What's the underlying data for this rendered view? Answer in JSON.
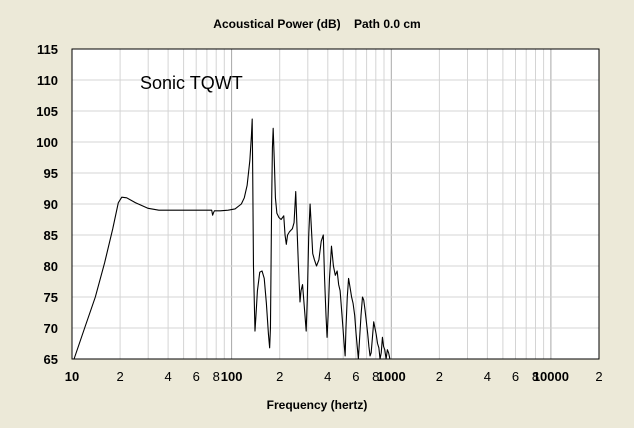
{
  "chart_data": {
    "type": "line",
    "title": "Acoustical Power (dB)    Path 0.0 cm",
    "xlabel": "Frequency (hertz)",
    "ylabel": "",
    "x_scale": "log",
    "xlim": [
      10,
      20000
    ],
    "ylim": [
      65,
      115
    ],
    "grid": true,
    "y_ticks": [
      65,
      70,
      75,
      80,
      85,
      90,
      95,
      100,
      105,
      110,
      115
    ],
    "x_ticks": [
      {
        "value": 10,
        "label": "10"
      },
      {
        "value": 20,
        "label": "2"
      },
      {
        "value": 40,
        "label": "4"
      },
      {
        "value": 60,
        "label": "6"
      },
      {
        "value": 80,
        "label": "8"
      },
      {
        "value": 100,
        "label": "100"
      },
      {
        "value": 200,
        "label": "2"
      },
      {
        "value": 400,
        "label": "4"
      },
      {
        "value": 600,
        "label": "6"
      },
      {
        "value": 800,
        "label": "8"
      },
      {
        "value": 1000,
        "label": "1000"
      },
      {
        "value": 2000,
        "label": "2"
      },
      {
        "value": 4000,
        "label": "4"
      },
      {
        "value": 6000,
        "label": "6"
      },
      {
        "value": 8000,
        "label": "8"
      },
      {
        "value": 10000,
        "label": "10000"
      },
      {
        "value": 20000,
        "label": "2"
      }
    ],
    "annotation": "Sonic TQWT",
    "series": [
      {
        "color": "#000000",
        "points": [
          [
            10.3,
            65
          ],
          [
            12,
            70
          ],
          [
            14,
            75
          ],
          [
            16,
            80.5
          ],
          [
            18,
            86
          ],
          [
            19.5,
            90.2
          ],
          [
            20.5,
            91.1
          ],
          [
            22,
            91
          ],
          [
            25,
            90.2
          ],
          [
            30,
            89.3
          ],
          [
            35,
            89
          ],
          [
            40,
            89
          ],
          [
            45,
            89
          ],
          [
            60,
            89
          ],
          [
            70,
            89
          ],
          [
            75,
            89
          ],
          [
            76,
            88.2
          ],
          [
            77,
            88.6
          ],
          [
            78,
            88.9
          ],
          [
            85,
            88.9
          ],
          [
            95,
            89
          ],
          [
            105,
            89.2
          ],
          [
            115,
            90
          ],
          [
            120,
            91
          ],
          [
            125,
            93
          ],
          [
            130,
            97
          ],
          [
            133,
            101
          ],
          [
            134.5,
            103.7
          ],
          [
            135.5,
            95
          ],
          [
            137,
            80
          ],
          [
            140,
            69.5
          ],
          [
            142,
            72
          ],
          [
            145,
            76
          ],
          [
            150,
            79
          ],
          [
            155,
            79.2
          ],
          [
            160,
            78
          ],
          [
            165,
            74
          ],
          [
            170,
            69
          ],
          [
            173,
            66.8
          ],
          [
            175,
            70
          ],
          [
            178,
            90
          ],
          [
            180,
            99
          ],
          [
            182,
            102.2
          ],
          [
            185,
            97
          ],
          [
            188,
            91
          ],
          [
            192,
            88.5
          ],
          [
            198,
            87.8
          ],
          [
            204,
            87.5
          ],
          [
            212,
            88.1
          ],
          [
            216,
            85
          ],
          [
            220,
            83.5
          ],
          [
            224,
            85
          ],
          [
            230,
            85.5
          ],
          [
            240,
            86
          ],
          [
            246,
            87
          ],
          [
            252,
            92
          ],
          [
            256,
            87
          ],
          [
            262,
            80
          ],
          [
            268,
            74.2
          ],
          [
            272,
            76
          ],
          [
            278,
            77
          ],
          [
            282,
            75
          ],
          [
            288,
            72
          ],
          [
            293,
            69.5
          ],
          [
            298,
            75
          ],
          [
            304,
            85
          ],
          [
            310,
            90
          ],
          [
            316,
            86
          ],
          [
            322,
            82
          ],
          [
            330,
            81
          ],
          [
            340,
            80
          ],
          [
            352,
            81
          ],
          [
            364,
            84
          ],
          [
            375,
            85
          ],
          [
            382,
            78
          ],
          [
            390,
            72
          ],
          [
            396,
            68.5
          ],
          [
            402,
            72
          ],
          [
            410,
            78
          ],
          [
            422,
            83.2
          ],
          [
            434,
            80
          ],
          [
            446,
            78.5
          ],
          [
            458,
            79.2
          ],
          [
            468,
            77
          ],
          [
            478,
            76
          ],
          [
            488,
            73
          ],
          [
            498,
            70
          ],
          [
            508,
            67
          ],
          [
            514,
            65.5
          ],
          [
            520,
            70
          ],
          [
            530,
            75
          ],
          [
            540,
            78
          ],
          [
            552,
            76.5
          ],
          [
            564,
            75
          ],
          [
            576,
            74
          ],
          [
            590,
            72
          ],
          [
            602,
            69
          ],
          [
            612,
            67
          ],
          [
            622,
            65
          ],
          [
            632,
            68
          ],
          [
            646,
            72
          ],
          [
            660,
            75
          ],
          [
            672,
            74.5
          ],
          [
            684,
            73
          ],
          [
            698,
            71
          ],
          [
            712,
            69
          ],
          [
            724,
            67
          ],
          [
            736,
            65.5
          ],
          [
            748,
            66
          ],
          [
            762,
            68.5
          ],
          [
            776,
            71
          ],
          [
            790,
            70
          ],
          [
            804,
            69
          ],
          [
            820,
            67.5
          ],
          [
            836,
            66.8
          ],
          [
            850,
            65
          ],
          [
            865,
            66
          ],
          [
            880,
            68.5
          ],
          [
            895,
            67
          ],
          [
            910,
            66.5
          ],
          [
            928,
            65
          ],
          [
            945,
            66.5
          ],
          [
            962,
            66
          ],
          [
            980,
            65
          ]
        ]
      }
    ]
  }
}
